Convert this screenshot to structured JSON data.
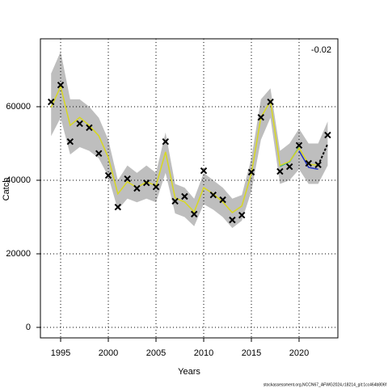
{
  "chart_data": {
    "type": "line",
    "x_label": "Years",
    "y_label": "Catch",
    "annotation": "-0.02",
    "footer": "stockassessment.org,NCCN67_AFWG2024,r18214_git:1cc464b806f",
    "x": [
      1994,
      1995,
      1996,
      1997,
      1998,
      1999,
      2000,
      2001,
      2002,
      2003,
      2004,
      2005,
      2006,
      2007,
      2008,
      2009,
      2010,
      2011,
      2012,
      2013,
      2014,
      2015,
      2016,
      2017,
      2018,
      2019,
      2020,
      2021,
      2022,
      2023
    ],
    "xlim": [
      1992.88,
      2024.07
    ],
    "xticks": [
      1995,
      2000,
      2005,
      2010,
      2015,
      2020
    ],
    "ylim": [
      -2857,
      78460
    ],
    "yticks": [
      0,
      20000,
      40000,
      60000
    ],
    "grid": true,
    "band": {
      "color": "#bebebe",
      "upper": [
        69000,
        75000,
        62000,
        62000,
        60000,
        57000,
        51000,
        40000,
        44000,
        42000,
        44000,
        42000,
        53000,
        39000,
        38000,
        35000,
        42000,
        40000,
        38000,
        35000,
        36000,
        46000,
        62000,
        65000,
        48000,
        50000,
        54000,
        50000,
        50000,
        56000
      ],
      "lower": [
        52000,
        57000,
        47000,
        49000,
        48000,
        46000,
        41000,
        32000,
        35000,
        34000,
        35000,
        34000,
        42000,
        31000,
        30000,
        27500,
        33500,
        32000,
        30000,
        27000,
        29000,
        37000,
        51000,
        57000,
        39000,
        40000,
        43000,
        39000,
        39000,
        44000
      ]
    },
    "lines": [
      {
        "color": "#00a0a0",
        "values": [
          null,
          null,
          null,
          null,
          null,
          null,
          null,
          null,
          null,
          null,
          null,
          null,
          null,
          null,
          null,
          null,
          null,
          null,
          null,
          null,
          null,
          null,
          null,
          null,
          43800,
          45000,
          49000,
          null,
          null,
          null
        ]
      },
      {
        "color": "#2030c0",
        "values": [
          null,
          null,
          null,
          null,
          null,
          null,
          null,
          null,
          null,
          null,
          null,
          null,
          null,
          null,
          null,
          null,
          null,
          null,
          null,
          null,
          null,
          null,
          null,
          null,
          null,
          null,
          48000,
          43500,
          43000,
          null
        ]
      },
      {
        "color": "#d8d820",
        "values": [
          59800,
          65500,
          54900,
          57100,
          54900,
          52100,
          46200,
          36300,
          39600,
          38000,
          39600,
          38500,
          47700,
          35200,
          34100,
          31400,
          38000,
          36300,
          34100,
          31200,
          33000,
          41800,
          57100,
          61500,
          44000,
          45100,
          48800,
          44400,
          44000,
          null
        ]
      },
      {
        "color": "#000000",
        "dashed": true,
        "values": [
          null,
          null,
          null,
          null,
          null,
          null,
          null,
          null,
          null,
          null,
          null,
          null,
          null,
          null,
          null,
          null,
          null,
          null,
          null,
          null,
          null,
          null,
          null,
          null,
          null,
          null,
          null,
          null,
          44000,
          49900
        ]
      }
    ],
    "points": [
      61300,
      65900,
      50500,
      55400,
      54300,
      47300,
      41300,
      32700,
      40400,
      37800,
      39300,
      38200,
      50500,
      34300,
      35600,
      30800,
      42600,
      36000,
      34700,
      29200,
      30500,
      42200,
      57100,
      61300,
      42400,
      43700,
      49500,
      44600,
      44200,
      52300
    ]
  }
}
